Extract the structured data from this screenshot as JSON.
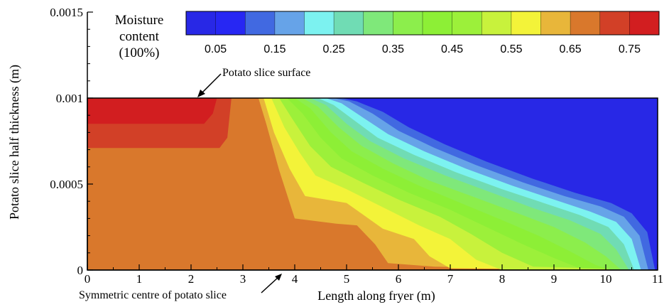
{
  "chart_data": {
    "type": "heatmap",
    "title": "",
    "xlabel": "Length along fryer (m)",
    "ylabel": "Potato slice half thickness (m)",
    "xlim": [
      0,
      11
    ],
    "ylim": [
      0,
      0.0015
    ],
    "x_ticks": [
      0,
      1,
      2,
      3,
      4,
      5,
      6,
      7,
      8,
      9,
      10,
      11
    ],
    "x_tick_labels": [
      "0",
      "1",
      "2",
      "3",
      "4",
      "5",
      "6",
      "7",
      "8",
      "9",
      "10",
      "11"
    ],
    "y_ticks": [
      0,
      0.0005,
      0.001,
      0.0015
    ],
    "y_tick_labels": [
      "0",
      "0.0005",
      "0.001",
      "0.0015"
    ],
    "domain_y_max": 0.001,
    "colorbar": {
      "title_lines": [
        "Moisture",
        "content",
        "(100%)"
      ],
      "range": [
        0,
        0.8
      ],
      "bins": 16,
      "colors": [
        "#2828e6",
        "#2727f3",
        "#4169e1",
        "#66a3e8",
        "#7cf2f0",
        "#70dcb4",
        "#7fe87a",
        "#8cee4c",
        "#8def36",
        "#9cf03a",
        "#c8f23c",
        "#f3f339",
        "#e8b63a",
        "#d9782c",
        "#d24027",
        "#d21e20"
      ],
      "labels": [
        "0.05",
        "0.15",
        "0.25",
        "0.35",
        "0.45",
        "0.55",
        "0.65",
        "0.75"
      ],
      "label_values": [
        0.05,
        0.15,
        0.25,
        0.35,
        0.45,
        0.55,
        0.65,
        0.75
      ]
    },
    "regions": [
      {
        "level": 0.65,
        "color": "#d9782c",
        "points": [
          [
            0,
            0
          ],
          [
            0,
            0.001
          ],
          [
            11,
            0.001
          ],
          [
            11,
            0
          ]
        ]
      },
      {
        "level": 0.75,
        "color": "#d24027",
        "points": [
          [
            0,
            0.00071
          ],
          [
            2.55,
            0.00071
          ],
          [
            2.7,
            0.00077
          ],
          [
            2.78,
            0.001
          ],
          [
            0,
            0.001
          ]
        ]
      },
      {
        "level": 0.8,
        "color": "#d21e20",
        "points": [
          [
            0,
            0.00085
          ],
          [
            2.25,
            0.00085
          ],
          [
            2.42,
            0.00091
          ],
          [
            2.5,
            0.001
          ],
          [
            0,
            0.001
          ]
        ]
      },
      {
        "level": 0.6,
        "color": "#e8b63a",
        "points": [
          [
            3.3,
            0.001
          ],
          [
            3.45,
            0.00085
          ],
          [
            3.7,
            0.00058
          ],
          [
            4.0,
            0.0003
          ],
          [
            4.8,
            0.00027
          ],
          [
            5.2,
            0.00026
          ],
          [
            5.55,
            0.00015
          ],
          [
            5.8,
            4e-05
          ],
          [
            6.7,
            2e-05
          ],
          [
            11,
            0
          ],
          [
            11,
            0.001
          ]
        ]
      },
      {
        "level": 0.55,
        "color": "#f3f339",
        "points": [
          [
            3.4,
            0.001
          ],
          [
            3.6,
            0.0008
          ],
          [
            3.9,
            0.00059
          ],
          [
            4.2,
            0.00043
          ],
          [
            5.0,
            0.00039
          ],
          [
            5.7,
            0.00024
          ],
          [
            6.3,
            0.00018
          ],
          [
            6.6,
            8e-05
          ],
          [
            7.0,
            1e-05
          ],
          [
            11,
            0
          ],
          [
            11,
            0.001
          ]
        ]
      },
      {
        "level": 0.5,
        "color": "#c8f23c",
        "points": [
          [
            3.55,
            0.001
          ],
          [
            3.8,
            0.00083
          ],
          [
            4.1,
            0.00068
          ],
          [
            4.4,
            0.00055
          ],
          [
            5.0,
            0.00047
          ],
          [
            5.6,
            0.00038
          ],
          [
            6.4,
            0.00026
          ],
          [
            7.0,
            0.00018
          ],
          [
            7.5,
            6e-05
          ],
          [
            8.0,
            0.0
          ],
          [
            11,
            0
          ],
          [
            11,
            0.001
          ]
        ]
      },
      {
        "level": 0.45,
        "color": "#9cf03a",
        "points": [
          [
            3.7,
            0.001
          ],
          [
            3.95,
            0.00088
          ],
          [
            4.3,
            0.00072
          ],
          [
            4.7,
            0.0006
          ],
          [
            5.3,
            0.00051
          ],
          [
            6.0,
            0.00041
          ],
          [
            6.8,
            0.00031
          ],
          [
            7.4,
            0.00021
          ],
          [
            8.0,
            0.0001
          ],
          [
            8.6,
            2e-05
          ],
          [
            11,
            0
          ],
          [
            11,
            0.001
          ]
        ]
      },
      {
        "level": 0.4,
        "color": "#8def36",
        "points": [
          [
            3.85,
            0.001
          ],
          [
            4.15,
            0.00091
          ],
          [
            4.5,
            0.00077
          ],
          [
            4.9,
            0.00065
          ],
          [
            5.5,
            0.00055
          ],
          [
            6.2,
            0.00045
          ],
          [
            7.0,
            0.00035
          ],
          [
            7.7,
            0.00025
          ],
          [
            8.4,
            0.00015
          ],
          [
            9.0,
            7e-05
          ],
          [
            9.5,
            1e-05
          ],
          [
            11,
            0
          ],
          [
            11,
            0.001
          ]
        ]
      },
      {
        "level": 0.35,
        "color": "#8cee4c",
        "points": [
          [
            4.0,
            0.001
          ],
          [
            4.3,
            0.00094
          ],
          [
            4.7,
            0.0008
          ],
          [
            5.1,
            0.00069
          ],
          [
            5.7,
            0.00059
          ],
          [
            6.4,
            0.00049
          ],
          [
            7.2,
            0.00039
          ],
          [
            8.0,
            0.00029
          ],
          [
            8.7,
            0.0002
          ],
          [
            9.3,
            0.00011
          ],
          [
            9.8,
            3e-05
          ],
          [
            10.1,
            0.0
          ],
          [
            11,
            0
          ],
          [
            11,
            0.001
          ]
        ]
      },
      {
        "level": 0.3,
        "color": "#7fe87a",
        "points": [
          [
            4.15,
            0.001
          ],
          [
            4.45,
            0.00095
          ],
          [
            4.85,
            0.00083
          ],
          [
            5.3,
            0.00072
          ],
          [
            5.9,
            0.00062
          ],
          [
            6.6,
            0.00052
          ],
          [
            7.5,
            0.00042
          ],
          [
            8.3,
            0.00033
          ],
          [
            9.0,
            0.00025
          ],
          [
            9.6,
            0.00016
          ],
          [
            10.0,
            8e-05
          ],
          [
            10.3,
            0.0
          ],
          [
            11,
            0
          ],
          [
            11,
            0.001
          ]
        ]
      },
      {
        "level": 0.25,
        "color": "#70dcb4",
        "points": [
          [
            4.3,
            0.001
          ],
          [
            4.6,
            0.00096
          ],
          [
            5.0,
            0.00085
          ],
          [
            5.45,
            0.00075
          ],
          [
            6.1,
            0.00065
          ],
          [
            6.9,
            0.00055
          ],
          [
            7.8,
            0.00045
          ],
          [
            8.6,
            0.00036
          ],
          [
            9.3,
            0.00029
          ],
          [
            9.9,
            0.00021
          ],
          [
            10.2,
            0.00012
          ],
          [
            10.45,
            0.0
          ],
          [
            11,
            0
          ],
          [
            11,
            0.001
          ]
        ]
      },
      {
        "level": 0.2,
        "color": "#7cf2f0",
        "points": [
          [
            4.45,
            0.001
          ],
          [
            4.75,
            0.00096
          ],
          [
            5.15,
            0.00087
          ],
          [
            5.6,
            0.00077
          ],
          [
            6.3,
            0.00067
          ],
          [
            7.1,
            0.00057
          ],
          [
            8.0,
            0.00047
          ],
          [
            8.8,
            0.00039
          ],
          [
            9.5,
            0.00032
          ],
          [
            10.05,
            0.00025
          ],
          [
            10.35,
            0.00015
          ],
          [
            10.55,
            0.0
          ],
          [
            11,
            0
          ],
          [
            11,
            0.001
          ]
        ]
      },
      {
        "level": 0.15,
        "color": "#66a3e8",
        "points": [
          [
            4.6,
            0.001
          ],
          [
            4.9,
            0.00097
          ],
          [
            5.3,
            0.00089
          ],
          [
            5.8,
            0.00079
          ],
          [
            6.5,
            0.00069
          ],
          [
            7.3,
            0.00059
          ],
          [
            8.2,
            0.00049
          ],
          [
            9.0,
            0.00041
          ],
          [
            9.7,
            0.00034
          ],
          [
            10.2,
            0.00028
          ],
          [
            10.5,
            0.00018
          ],
          [
            10.68,
            0.0
          ],
          [
            11,
            0
          ],
          [
            11,
            0.001
          ]
        ]
      },
      {
        "level": 0.1,
        "color": "#4169e1",
        "points": [
          [
            4.75,
            0.001
          ],
          [
            5.05,
            0.00098
          ],
          [
            5.5,
            0.00091
          ],
          [
            6.0,
            0.00081
          ],
          [
            6.7,
            0.00071
          ],
          [
            7.5,
            0.00061
          ],
          [
            8.4,
            0.00051
          ],
          [
            9.2,
            0.00043
          ],
          [
            9.9,
            0.00037
          ],
          [
            10.35,
            0.00031
          ],
          [
            10.65,
            0.0002
          ],
          [
            10.82,
            0.0
          ],
          [
            11,
            0
          ],
          [
            11,
            0.001
          ]
        ]
      },
      {
        "level": 0.05,
        "color": "#2828e6",
        "points": [
          [
            4.9,
            0.001
          ],
          [
            5.2,
            0.00098
          ],
          [
            5.7,
            0.00092
          ],
          [
            6.2,
            0.00083
          ],
          [
            6.9,
            0.00073
          ],
          [
            7.7,
            0.00063
          ],
          [
            8.6,
            0.00053
          ],
          [
            9.4,
            0.00045
          ],
          [
            10.1,
            0.00039
          ],
          [
            10.5,
            0.00033
          ],
          [
            10.8,
            0.00022
          ],
          [
            10.95,
            0.0
          ],
          [
            11,
            0
          ],
          [
            11,
            0.001
          ]
        ]
      }
    ],
    "annotations": [
      {
        "text": "Potato slice surface",
        "target": [
          2.1,
          0.001
        ]
      },
      {
        "text": "Symmetric centre of potato slice",
        "target": [
          3.8,
          0.0
        ]
      }
    ]
  }
}
